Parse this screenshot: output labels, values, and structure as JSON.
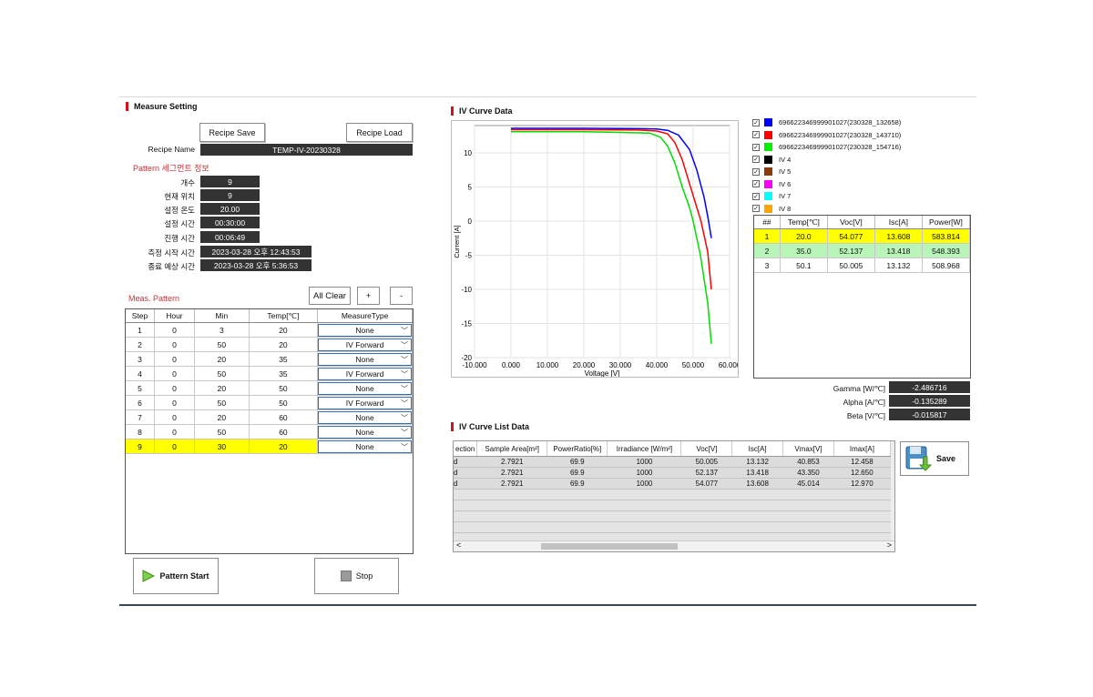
{
  "measure_setting": {
    "title": "Measure Setting",
    "recipe_save": "Recipe Save",
    "recipe_load": "Recipe Load",
    "recipe_name_label": "Recipe Name",
    "recipe_name_value": "TEMP-IV-20230328"
  },
  "pattern_info": {
    "title": "Pattern 세그먼트 정보",
    "rows": [
      {
        "label": "개수",
        "value": "9"
      },
      {
        "label": "현재 위치",
        "value": "9"
      },
      {
        "label": "설정 온도",
        "value": "20.00"
      },
      {
        "label": "설정 시간",
        "value": "00:30:00"
      },
      {
        "label": "진행 시간",
        "value": "00:06:49"
      },
      {
        "label": "측정 시작 시간",
        "value": "2023-03-28 오후 12:43:53"
      },
      {
        "label": "종료 예상 시간",
        "value": "2023-03-28 오후 5:36:53"
      }
    ]
  },
  "meas_pattern": {
    "title": "Meas. Pattern",
    "all_clear": "All Clear",
    "plus": "+",
    "minus": "-",
    "headers": [
      "Step",
      "Hour",
      "Min",
      "Temp[℃]",
      "MeasureType"
    ],
    "rows": [
      [
        "1",
        "0",
        "3",
        "20",
        "None"
      ],
      [
        "2",
        "0",
        "50",
        "20",
        "IV Forward"
      ],
      [
        "3",
        "0",
        "20",
        "35",
        "None"
      ],
      [
        "4",
        "0",
        "50",
        "35",
        "IV Forward"
      ],
      [
        "5",
        "0",
        "20",
        "50",
        "None"
      ],
      [
        "6",
        "0",
        "50",
        "50",
        "IV Forward"
      ],
      [
        "7",
        "0",
        "20",
        "60",
        "None"
      ],
      [
        "8",
        "0",
        "50",
        "60",
        "None"
      ],
      [
        "9",
        "0",
        "30",
        "20",
        "None"
      ]
    ],
    "selected_row": 9
  },
  "buttons": {
    "pattern_start": "Pattern Start",
    "stop": "Stop",
    "save": "Save"
  },
  "iv_curve": {
    "title": "IV Curve Data"
  },
  "chart_data": {
    "type": "line",
    "xlabel": "Voltage [V]",
    "ylabel": "Current [A]",
    "xlim": [
      -10,
      60
    ],
    "ylim": [
      -20,
      14
    ],
    "x_ticks": [
      "-10.000",
      "0.000",
      "10.000",
      "20.000",
      "30.000",
      "40.000",
      "50.000",
      "60.000"
    ],
    "y_ticks": [
      "10",
      "5",
      "0",
      "-5",
      "-10",
      "-15",
      "-20"
    ],
    "grid": true,
    "series": [
      {
        "name": "69662234699990102​7(230328_132658)",
        "color": "#0000ff",
        "points": [
          [
            0,
            13.6
          ],
          [
            20,
            13.6
          ],
          [
            35,
            13.55
          ],
          [
            40,
            13.5
          ],
          [
            43,
            13.3
          ],
          [
            46,
            12.6
          ],
          [
            49,
            10.5
          ],
          [
            51,
            7.5
          ],
          [
            53,
            3.5
          ],
          [
            54.08,
            0.5
          ],
          [
            55,
            -2.5
          ]
        ]
      },
      {
        "name": "69662234699990102​7(230328_143710)",
        "color": "#ff0000",
        "points": [
          [
            0,
            13.4
          ],
          [
            20,
            13.4
          ],
          [
            35,
            13.35
          ],
          [
            40,
            13.2
          ],
          [
            43,
            12.8
          ],
          [
            45,
            11.5
          ],
          [
            47,
            9
          ],
          [
            49,
            5.5
          ],
          [
            51,
            2
          ],
          [
            52.14,
            0
          ],
          [
            54,
            -4.5
          ],
          [
            55,
            -10
          ]
        ]
      },
      {
        "name": "69662234699990102​7(230328_154716)",
        "color": "#00dd00",
        "points": [
          [
            0,
            13.1
          ],
          [
            20,
            13.1
          ],
          [
            30,
            13.0
          ],
          [
            38,
            12.9
          ],
          [
            41,
            12.3
          ],
          [
            43,
            11
          ],
          [
            45,
            8.5
          ],
          [
            47,
            5
          ],
          [
            49,
            2
          ],
          [
            50,
            0
          ],
          [
            52,
            -5
          ],
          [
            54,
            -12
          ],
          [
            55,
            -18
          ]
        ]
      }
    ]
  },
  "legend": [
    {
      "label": "696622346999901027(230328_132658)",
      "color": "#0000ff",
      "checked": true
    },
    {
      "label": "696622346999901027(230328_143710)",
      "color": "#ff0000",
      "checked": true
    },
    {
      "label": "696622346999901027(230328_154716)",
      "color": "#00ee00",
      "checked": true
    },
    {
      "label": "IV 4",
      "color": "#000000",
      "checked": true
    },
    {
      "label": "IV 5",
      "color": "#8b3a0f",
      "checked": true
    },
    {
      "label": "IV 6",
      "color": "#ff00ff",
      "checked": true
    },
    {
      "label": "IV 7",
      "color": "#00ffff",
      "checked": true
    },
    {
      "label": "IV 8",
      "color": "#ffa500",
      "checked": true
    }
  ],
  "result_table": {
    "headers": [
      "##",
      "Temp[℃]",
      "Voc[V]",
      "Isc[A]",
      "Power[W]"
    ],
    "rows": [
      {
        "cells": [
          "1",
          "20.0",
          "54.077",
          "13.608",
          "583.814"
        ],
        "bg": "#ffff00"
      },
      {
        "cells": [
          "2",
          "35.0",
          "52.137",
          "13.418",
          "548.393"
        ],
        "bg": "#b9f5b9"
      },
      {
        "cells": [
          "3",
          "50.1",
          "50.005",
          "13.132",
          "508.968"
        ],
        "bg": "#ffffff"
      }
    ]
  },
  "coefficients": [
    {
      "label": "Gamma [W/℃]",
      "value": "-2.486716"
    },
    {
      "label": "Alpha [A/℃]",
      "value": "-0.135289"
    },
    {
      "label": "Beta [V/℃]",
      "value": "-0.015817"
    }
  ],
  "list_data": {
    "title": "IV Curve List Data",
    "headers": [
      "ection",
      "Sample Area[m²]",
      "PowerRatio[%]",
      "Irradiance [W/m²]",
      "Voc[V]",
      "Isc[A]",
      "Vmax[V]",
      "Imax[A]"
    ],
    "rows": [
      [
        "d",
        "2.7921",
        "69.9",
        "1000",
        "50.005",
        "13.132",
        "40.853",
        "12.458"
      ],
      [
        "d",
        "2.7921",
        "69.9",
        "1000",
        "52.137",
        "13.418",
        "43.350",
        "12.650"
      ],
      [
        "d",
        "2.7921",
        "69.9",
        "1000",
        "54.077",
        "13.608",
        "45.014",
        "12.970"
      ]
    ],
    "scroll_left": "<",
    "scroll_right": ">"
  }
}
